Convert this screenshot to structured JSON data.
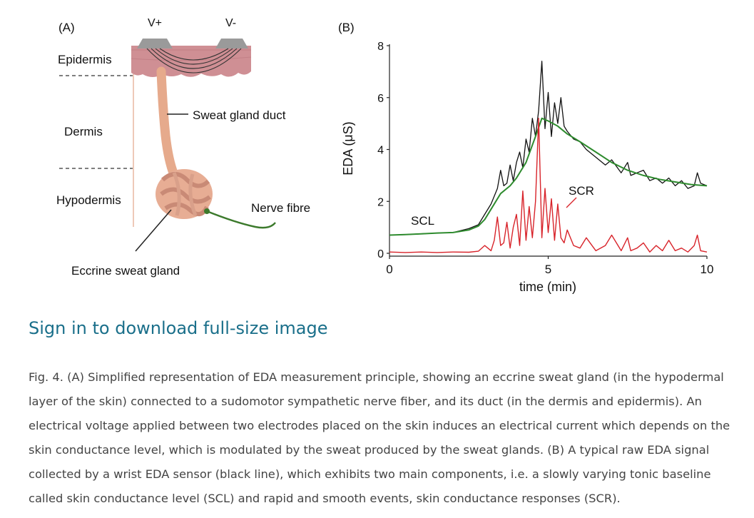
{
  "panel_a": {
    "label": "(A)",
    "electrode_pos": "V+",
    "electrode_neg": "V-",
    "layer_epidermis": "Epidermis",
    "layer_dermis": "Dermis",
    "layer_hypodermis": "Hypodermis",
    "duct_label": "Sweat gland duct",
    "nerve_label": "Nerve fibre",
    "gland_label": "Eccrine sweat gland"
  },
  "panel_b_label": "(B)",
  "chart_data": {
    "type": "line",
    "xlabel": "time (min)",
    "ylabel": "EDA (μS)",
    "xlim": [
      0,
      10
    ],
    "ylim": [
      0,
      8
    ],
    "x_ticks": [
      "0",
      "5",
      "10"
    ],
    "y_ticks": [
      "0",
      "2",
      "4",
      "6",
      "8"
    ],
    "annotations": [
      "SCL",
      "SCR"
    ],
    "grid": false,
    "colors": {
      "raw": "#111111",
      "scl": "#2e8b2e",
      "scr": "#d8232a"
    },
    "series": [
      {
        "x": [
          0,
          0.5,
          1,
          1.5,
          2,
          2.5,
          2.8,
          3,
          3.2,
          3.4,
          3.5,
          3.6,
          3.7,
          3.8,
          3.9,
          4,
          4.1,
          4.2,
          4.3,
          4.4,
          4.5,
          4.6,
          4.7,
          4.8,
          4.9,
          5,
          5.1,
          5.2,
          5.3,
          5.4,
          5.5,
          5.6,
          5.8,
          6,
          6.2,
          6.5,
          6.8,
          7,
          7.3,
          7.5,
          7.6,
          7.8,
          8,
          8.2,
          8.4,
          8.6,
          8.8,
          9,
          9.2,
          9.4,
          9.6,
          9.7,
          9.8,
          10
        ],
        "values": [
          0.7,
          0.72,
          0.75,
          0.78,
          0.8,
          0.95,
          1.1,
          1.5,
          1.9,
          2.5,
          3.2,
          2.6,
          2.7,
          3.4,
          2.8,
          3.5,
          3.9,
          3.3,
          4.4,
          3.9,
          5.2,
          4.5,
          5.5,
          7.4,
          4.8,
          6.2,
          4.5,
          5.8,
          5.0,
          6.0,
          4.9,
          4.7,
          4.4,
          4.3,
          4.0,
          3.7,
          3.4,
          3.6,
          3.1,
          3.5,
          3.0,
          3.1,
          3.2,
          2.8,
          2.9,
          2.7,
          2.9,
          2.6,
          2.8,
          2.5,
          2.6,
          3.1,
          2.7,
          2.6
        ]
      },
      {
        "name": "SCL",
        "x": [
          0,
          0.5,
          1,
          1.5,
          2,
          2.5,
          2.8,
          3,
          3.2,
          3.5,
          3.8,
          4,
          4.3,
          4.6,
          4.8,
          5,
          5.3,
          5.6,
          6,
          6.5,
          7,
          7.5,
          8,
          8.5,
          9,
          9.5,
          10
        ],
        "values": [
          0.7,
          0.72,
          0.75,
          0.78,
          0.8,
          0.9,
          1.05,
          1.3,
          1.7,
          2.3,
          2.6,
          2.9,
          3.5,
          4.5,
          5.2,
          5.1,
          4.9,
          4.6,
          4.3,
          3.9,
          3.5,
          3.2,
          3.0,
          2.85,
          2.75,
          2.65,
          2.6
        ]
      },
      {
        "name": "SCR",
        "x": [
          0,
          0.5,
          1,
          1.5,
          2,
          2.5,
          2.8,
          3,
          3.2,
          3.3,
          3.4,
          3.5,
          3.6,
          3.7,
          3.8,
          3.9,
          4,
          4.1,
          4.2,
          4.3,
          4.4,
          4.5,
          4.6,
          4.7,
          4.8,
          4.9,
          5,
          5.1,
          5.2,
          5.3,
          5.4,
          5.5,
          5.6,
          5.8,
          6,
          6.2,
          6.5,
          6.8,
          7,
          7.3,
          7.5,
          7.6,
          7.8,
          8,
          8.2,
          8.4,
          8.6,
          8.8,
          9,
          9.2,
          9.4,
          9.6,
          9.7,
          9.8,
          10
        ],
        "values": [
          0.05,
          0.03,
          0.05,
          0.03,
          0.05,
          0.04,
          0.08,
          0.3,
          0.1,
          0.5,
          1.4,
          0.3,
          0.4,
          1.2,
          0.2,
          1.0,
          1.5,
          0.3,
          2.4,
          0.5,
          1.8,
          0.6,
          2.0,
          5.2,
          0.6,
          2.5,
          0.8,
          2.1,
          0.5,
          1.9,
          0.6,
          0.4,
          0.9,
          0.3,
          0.2,
          0.6,
          0.1,
          0.3,
          0.7,
          0.1,
          0.6,
          0.1,
          0.2,
          0.4,
          0.05,
          0.3,
          0.1,
          0.5,
          0.1,
          0.2,
          0.05,
          0.3,
          0.7,
          0.1,
          0.05
        ]
      }
    ]
  },
  "download_link": "Sign in to download full-size image",
  "caption": "Fig. 4. (A) Simplified representation of EDA measurement principle, showing an eccrine sweat gland (in the hypodermal layer of the skin) connected to a sudomotor sympathetic nerve fiber, and its duct (in the dermis and epidermis). An electrical voltage applied between two electrodes placed on the skin induces an electrical current which depends on the skin conductance level, which is modulated by the sweat produced by the sweat glands. (B) A typical raw EDA signal collected by a wrist EDA sensor (black line), which exhibits two main components, i.e. a slowly varying tonic baseline called skin conductance level (SCL) and rapid and smooth events, skin conductance responses (SCR)."
}
